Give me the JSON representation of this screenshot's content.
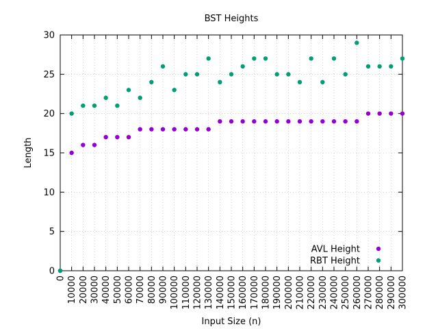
{
  "chart_data": {
    "type": "scatter",
    "title": "BST Heights",
    "xlabel": "Input Size (n)",
    "ylabel": "Length",
    "xlim": [
      0,
      300000
    ],
    "ylim": [
      0,
      30
    ],
    "x_ticks": [
      "0",
      "10000",
      "20000",
      "30000",
      "40000",
      "50000",
      "60000",
      "70000",
      "80000",
      "90000",
      "100000",
      "110000",
      "120000",
      "130000",
      "140000",
      "150000",
      "160000",
      "170000",
      "180000",
      "190000",
      "200000",
      "210000",
      "220000",
      "230000",
      "240000",
      "250000",
      "260000",
      "270000",
      "280000",
      "290000",
      "300000"
    ],
    "y_ticks": [
      "0",
      "5",
      "10",
      "15",
      "20",
      "25",
      "30"
    ],
    "grid": true,
    "legend_position": "bottom-right",
    "x": [
      0,
      10000,
      20000,
      30000,
      40000,
      50000,
      60000,
      70000,
      80000,
      90000,
      100000,
      110000,
      120000,
      130000,
      140000,
      150000,
      160000,
      170000,
      180000,
      190000,
      200000,
      210000,
      220000,
      230000,
      240000,
      250000,
      260000,
      270000,
      280000,
      290000,
      300000
    ],
    "series": [
      {
        "name": "AVL Height",
        "color": "#9400d3",
        "values": [
          0,
          15,
          16,
          16,
          17,
          17,
          17,
          18,
          18,
          18,
          18,
          18,
          18,
          18,
          19,
          19,
          19,
          19,
          19,
          19,
          19,
          19,
          19,
          19,
          19,
          19,
          19,
          20,
          20,
          20,
          20
        ]
      },
      {
        "name": "RBT Height",
        "color": "#009e73",
        "values": [
          0,
          20,
          21,
          21,
          22,
          21,
          23,
          22,
          24,
          26,
          23,
          25,
          25,
          27,
          24,
          25,
          26,
          27,
          27,
          25,
          25,
          24,
          27,
          24,
          27,
          25,
          29,
          26,
          26,
          26,
          27
        ]
      }
    ]
  }
}
